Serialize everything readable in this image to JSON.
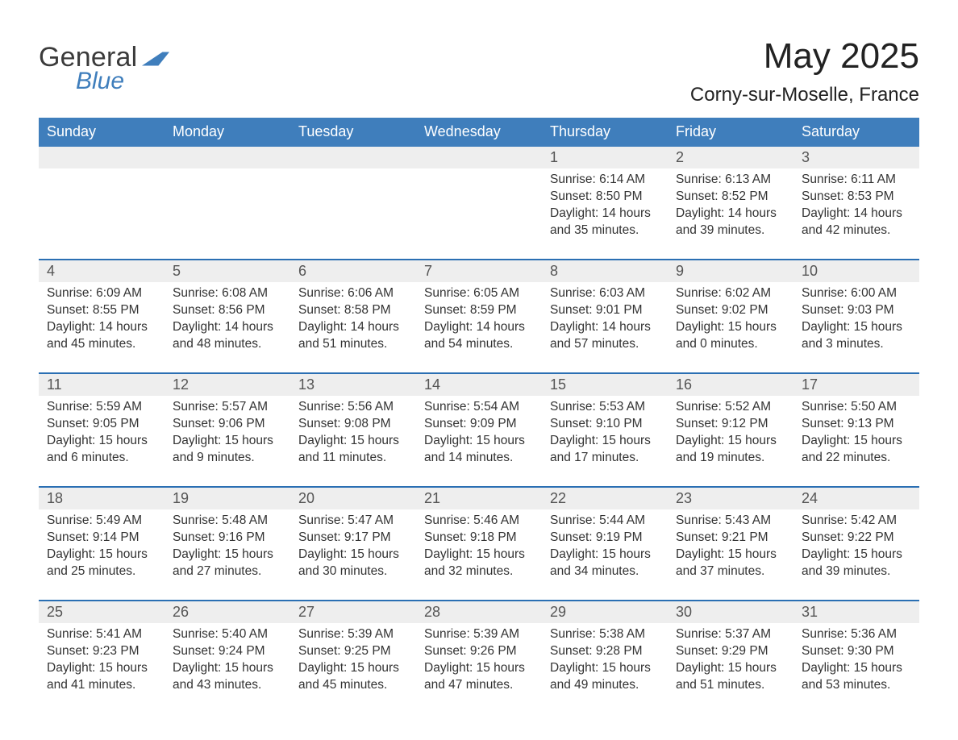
{
  "brand": {
    "name_part1": "General",
    "name_part2": "Blue"
  },
  "title": {
    "month_year": "May 2025",
    "location": "Corny-sur-Moselle, France"
  },
  "colors": {
    "brand_blue": "#3f7ebc",
    "divider": "#2a6fb3",
    "row_header_bg": "#eeeeee",
    "text": "#333333",
    "page_bg": "#ffffff",
    "weekday_text": "#ffffff"
  },
  "layout": {
    "columns": 7,
    "weeks": 5,
    "start_weekday_index": 4
  },
  "weekdays": [
    "Sunday",
    "Monday",
    "Tuesday",
    "Wednesday",
    "Thursday",
    "Friday",
    "Saturday"
  ],
  "days": [
    {
      "n": 1,
      "sunrise": "6:14 AM",
      "sunset": "8:50 PM",
      "daylight": "14 hours and 35 minutes."
    },
    {
      "n": 2,
      "sunrise": "6:13 AM",
      "sunset": "8:52 PM",
      "daylight": "14 hours and 39 minutes."
    },
    {
      "n": 3,
      "sunrise": "6:11 AM",
      "sunset": "8:53 PM",
      "daylight": "14 hours and 42 minutes."
    },
    {
      "n": 4,
      "sunrise": "6:09 AM",
      "sunset": "8:55 PM",
      "daylight": "14 hours and 45 minutes."
    },
    {
      "n": 5,
      "sunrise": "6:08 AM",
      "sunset": "8:56 PM",
      "daylight": "14 hours and 48 minutes."
    },
    {
      "n": 6,
      "sunrise": "6:06 AM",
      "sunset": "8:58 PM",
      "daylight": "14 hours and 51 minutes."
    },
    {
      "n": 7,
      "sunrise": "6:05 AM",
      "sunset": "8:59 PM",
      "daylight": "14 hours and 54 minutes."
    },
    {
      "n": 8,
      "sunrise": "6:03 AM",
      "sunset": "9:01 PM",
      "daylight": "14 hours and 57 minutes."
    },
    {
      "n": 9,
      "sunrise": "6:02 AM",
      "sunset": "9:02 PM",
      "daylight": "15 hours and 0 minutes."
    },
    {
      "n": 10,
      "sunrise": "6:00 AM",
      "sunset": "9:03 PM",
      "daylight": "15 hours and 3 minutes."
    },
    {
      "n": 11,
      "sunrise": "5:59 AM",
      "sunset": "9:05 PM",
      "daylight": "15 hours and 6 minutes."
    },
    {
      "n": 12,
      "sunrise": "5:57 AM",
      "sunset": "9:06 PM",
      "daylight": "15 hours and 9 minutes."
    },
    {
      "n": 13,
      "sunrise": "5:56 AM",
      "sunset": "9:08 PM",
      "daylight": "15 hours and 11 minutes."
    },
    {
      "n": 14,
      "sunrise": "5:54 AM",
      "sunset": "9:09 PM",
      "daylight": "15 hours and 14 minutes."
    },
    {
      "n": 15,
      "sunrise": "5:53 AM",
      "sunset": "9:10 PM",
      "daylight": "15 hours and 17 minutes."
    },
    {
      "n": 16,
      "sunrise": "5:52 AM",
      "sunset": "9:12 PM",
      "daylight": "15 hours and 19 minutes."
    },
    {
      "n": 17,
      "sunrise": "5:50 AM",
      "sunset": "9:13 PM",
      "daylight": "15 hours and 22 minutes."
    },
    {
      "n": 18,
      "sunrise": "5:49 AM",
      "sunset": "9:14 PM",
      "daylight": "15 hours and 25 minutes."
    },
    {
      "n": 19,
      "sunrise": "5:48 AM",
      "sunset": "9:16 PM",
      "daylight": "15 hours and 27 minutes."
    },
    {
      "n": 20,
      "sunrise": "5:47 AM",
      "sunset": "9:17 PM",
      "daylight": "15 hours and 30 minutes."
    },
    {
      "n": 21,
      "sunrise": "5:46 AM",
      "sunset": "9:18 PM",
      "daylight": "15 hours and 32 minutes."
    },
    {
      "n": 22,
      "sunrise": "5:44 AM",
      "sunset": "9:19 PM",
      "daylight": "15 hours and 34 minutes."
    },
    {
      "n": 23,
      "sunrise": "5:43 AM",
      "sunset": "9:21 PM",
      "daylight": "15 hours and 37 minutes."
    },
    {
      "n": 24,
      "sunrise": "5:42 AM",
      "sunset": "9:22 PM",
      "daylight": "15 hours and 39 minutes."
    },
    {
      "n": 25,
      "sunrise": "5:41 AM",
      "sunset": "9:23 PM",
      "daylight": "15 hours and 41 minutes."
    },
    {
      "n": 26,
      "sunrise": "5:40 AM",
      "sunset": "9:24 PM",
      "daylight": "15 hours and 43 minutes."
    },
    {
      "n": 27,
      "sunrise": "5:39 AM",
      "sunset": "9:25 PM",
      "daylight": "15 hours and 45 minutes."
    },
    {
      "n": 28,
      "sunrise": "5:39 AM",
      "sunset": "9:26 PM",
      "daylight": "15 hours and 47 minutes."
    },
    {
      "n": 29,
      "sunrise": "5:38 AM",
      "sunset": "9:28 PM",
      "daylight": "15 hours and 49 minutes."
    },
    {
      "n": 30,
      "sunrise": "5:37 AM",
      "sunset": "9:29 PM",
      "daylight": "15 hours and 51 minutes."
    },
    {
      "n": 31,
      "sunrise": "5:36 AM",
      "sunset": "9:30 PM",
      "daylight": "15 hours and 53 minutes."
    }
  ],
  "labels": {
    "sunrise": "Sunrise",
    "sunset": "Sunset",
    "daylight": "Daylight"
  }
}
